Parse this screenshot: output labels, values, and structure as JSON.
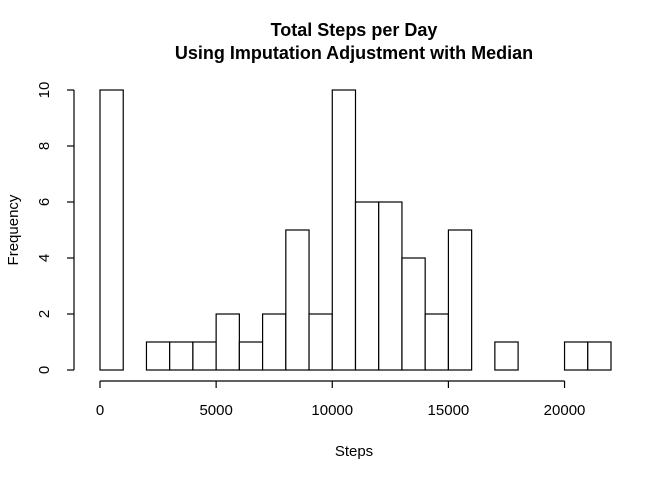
{
  "chart_data": {
    "type": "bar",
    "title": "Total Steps per Day",
    "subtitle": "Using Imputation Adjustment with Median",
    "xlabel": "Steps",
    "ylabel": "Frequency",
    "bin_width": 1000,
    "bin_starts": [
      0,
      1000,
      2000,
      3000,
      4000,
      5000,
      6000,
      7000,
      8000,
      9000,
      10000,
      11000,
      12000,
      13000,
      14000,
      15000,
      16000,
      17000,
      18000,
      19000,
      20000,
      21000
    ],
    "values": [
      10,
      0,
      1,
      1,
      1,
      2,
      1,
      2,
      5,
      2,
      10,
      6,
      6,
      4,
      2,
      5,
      0,
      1,
      0,
      0,
      1,
      1
    ],
    "xlim": [
      0,
      22000
    ],
    "ylim": [
      0,
      10
    ],
    "x_ticks": [
      0,
      5000,
      10000,
      15000,
      20000
    ],
    "y_ticks": [
      0,
      2,
      4,
      6,
      8,
      10
    ],
    "grid": false,
    "legend": "none"
  }
}
